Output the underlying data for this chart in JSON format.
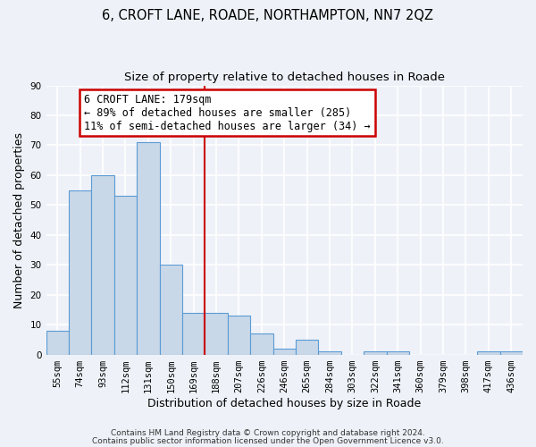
{
  "title": "6, CROFT LANE, ROADE, NORTHAMPTON, NN7 2QZ",
  "subtitle": "Size of property relative to detached houses in Roade",
  "xlabel": "Distribution of detached houses by size in Roade",
  "ylabel": "Number of detached properties",
  "bar_labels": [
    "55sqm",
    "74sqm",
    "93sqm",
    "112sqm",
    "131sqm",
    "150sqm",
    "169sqm",
    "188sqm",
    "207sqm",
    "226sqm",
    "246sqm",
    "265sqm",
    "284sqm",
    "303sqm",
    "322sqm",
    "341sqm",
    "360sqm",
    "379sqm",
    "398sqm",
    "417sqm",
    "436sqm"
  ],
  "bar_values": [
    8,
    55,
    60,
    53,
    71,
    30,
    14,
    14,
    13,
    7,
    2,
    5,
    1,
    0,
    1,
    1,
    0,
    0,
    0,
    1,
    1
  ],
  "bar_color": "#c8d8e8",
  "bar_edge_color": "#5b9bd5",
  "ylim": [
    0,
    90
  ],
  "yticks": [
    0,
    10,
    20,
    30,
    40,
    50,
    60,
    70,
    80,
    90
  ],
  "vline_x": 7.0,
  "vline_color": "#cc0000",
  "annotation_line1": "6 CROFT LANE: 179sqm",
  "annotation_line2": "← 89% of detached houses are smaller (285)",
  "annotation_line3": "11% of semi-detached houses are larger (34) →",
  "annotation_box_color": "#ffffff",
  "annotation_box_edge": "#cc0000",
  "footer_line1": "Contains HM Land Registry data © Crown copyright and database right 2024.",
  "footer_line2": "Contains public sector information licensed under the Open Government Licence v3.0.",
  "background_color": "#eef2f8",
  "grid_color": "#ffffff",
  "title_fontsize": 10.5,
  "subtitle_fontsize": 9.5,
  "xlabel_fontsize": 9,
  "ylabel_fontsize": 9,
  "tick_fontsize": 7.5,
  "annotation_fontsize": 8.5,
  "footer_fontsize": 6.5
}
